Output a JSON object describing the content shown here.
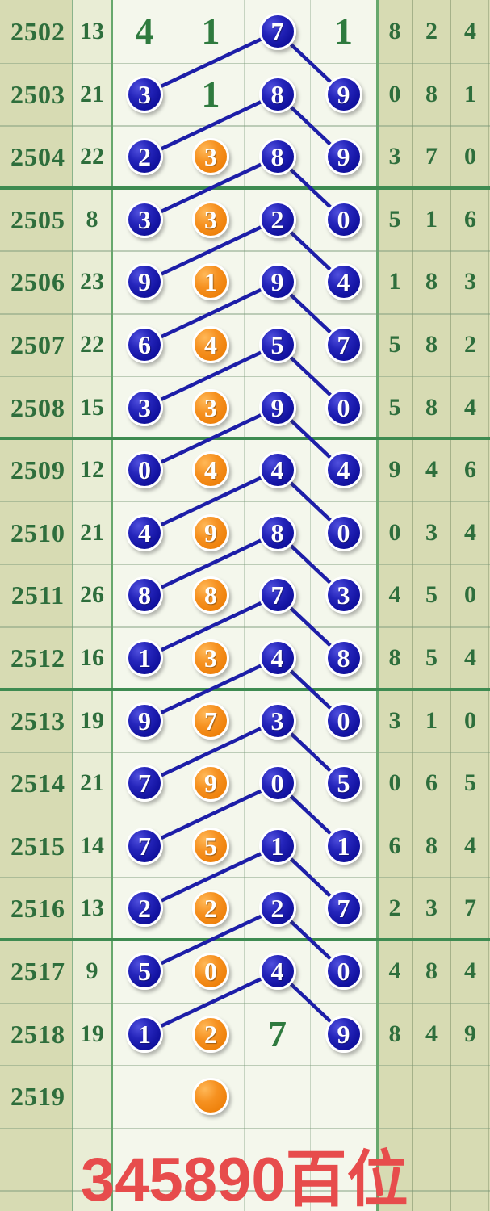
{
  "palette": {
    "page_bg": "#d7dbb3",
    "sum_col_bg": "#e9edd5",
    "chart_bg": "#f4f7ec",
    "green_text": "#2e6e3c",
    "chart_green_text": "#2e7a3e",
    "blue_ball": "#1c1cae",
    "orange_ball": "#f08a12",
    "connector_line": "#1d1ea8",
    "group_separator": "#3e8b51",
    "stamp_red": "#e74c4c"
  },
  "footer": {
    "label": "345890百位"
  },
  "chart_data": {
    "type": "table",
    "title": "345890百位",
    "columns": [
      "period",
      "sum",
      "pos1",
      "pos2",
      "pos3",
      "pos4",
      "stat1",
      "stat2",
      "stat3"
    ],
    "cell_styles": {
      "t": "green-text",
      "b": "blue-ball",
      "o": "orange-ball",
      "": "empty"
    },
    "line_rule": "blue ball in pos3 of each row connects to blue balls in pos1 and pos4 of the next row",
    "rows": [
      {
        "period": "2502",
        "sum": "13",
        "cells": [
          {
            "v": "4",
            "s": "t"
          },
          {
            "v": "1",
            "s": "t"
          },
          {
            "v": "7",
            "s": "b"
          },
          {
            "v": "1",
            "s": "t"
          }
        ],
        "right": [
          "8",
          "2",
          "4"
        ]
      },
      {
        "period": "2503",
        "sum": "21",
        "cells": [
          {
            "v": "3",
            "s": "b"
          },
          {
            "v": "1",
            "s": "t"
          },
          {
            "v": "8",
            "s": "b"
          },
          {
            "v": "9",
            "s": "b"
          }
        ],
        "right": [
          "0",
          "8",
          "1"
        ]
      },
      {
        "period": "2504",
        "sum": "22",
        "cells": [
          {
            "v": "2",
            "s": "b"
          },
          {
            "v": "3",
            "s": "o"
          },
          {
            "v": "8",
            "s": "b"
          },
          {
            "v": "9",
            "s": "b"
          }
        ],
        "right": [
          "3",
          "7",
          "0"
        ]
      },
      {
        "period": "2505",
        "sum": "8",
        "cells": [
          {
            "v": "3",
            "s": "b"
          },
          {
            "v": "3",
            "s": "o"
          },
          {
            "v": "2",
            "s": "b"
          },
          {
            "v": "0",
            "s": "b"
          }
        ],
        "right": [
          "5",
          "1",
          "6"
        ]
      },
      {
        "period": "2506",
        "sum": "23",
        "cells": [
          {
            "v": "9",
            "s": "b"
          },
          {
            "v": "1",
            "s": "o"
          },
          {
            "v": "9",
            "s": "b"
          },
          {
            "v": "4",
            "s": "b"
          }
        ],
        "right": [
          "1",
          "8",
          "3"
        ]
      },
      {
        "period": "2507",
        "sum": "22",
        "cells": [
          {
            "v": "6",
            "s": "b"
          },
          {
            "v": "4",
            "s": "o"
          },
          {
            "v": "5",
            "s": "b"
          },
          {
            "v": "7",
            "s": "b"
          }
        ],
        "right": [
          "5",
          "8",
          "2"
        ]
      },
      {
        "period": "2508",
        "sum": "15",
        "cells": [
          {
            "v": "3",
            "s": "b"
          },
          {
            "v": "3",
            "s": "o"
          },
          {
            "v": "9",
            "s": "b"
          },
          {
            "v": "0",
            "s": "b"
          }
        ],
        "right": [
          "5",
          "8",
          "4"
        ]
      },
      {
        "period": "2509",
        "sum": "12",
        "cells": [
          {
            "v": "0",
            "s": "b"
          },
          {
            "v": "4",
            "s": "o"
          },
          {
            "v": "4",
            "s": "b"
          },
          {
            "v": "4",
            "s": "b"
          }
        ],
        "right": [
          "9",
          "4",
          "6"
        ]
      },
      {
        "period": "2510",
        "sum": "21",
        "cells": [
          {
            "v": "4",
            "s": "b"
          },
          {
            "v": "9",
            "s": "o"
          },
          {
            "v": "8",
            "s": "b"
          },
          {
            "v": "0",
            "s": "b"
          }
        ],
        "right": [
          "0",
          "3",
          "4"
        ]
      },
      {
        "period": "2511",
        "sum": "26",
        "cells": [
          {
            "v": "8",
            "s": "b"
          },
          {
            "v": "8",
            "s": "o"
          },
          {
            "v": "7",
            "s": "b"
          },
          {
            "v": "3",
            "s": "b"
          }
        ],
        "right": [
          "4",
          "5",
          "0"
        ]
      },
      {
        "period": "2512",
        "sum": "16",
        "cells": [
          {
            "v": "1",
            "s": "b"
          },
          {
            "v": "3",
            "s": "o"
          },
          {
            "v": "4",
            "s": "b"
          },
          {
            "v": "8",
            "s": "b"
          }
        ],
        "right": [
          "8",
          "5",
          "4"
        ]
      },
      {
        "period": "2513",
        "sum": "19",
        "cells": [
          {
            "v": "9",
            "s": "b"
          },
          {
            "v": "7",
            "s": "o"
          },
          {
            "v": "3",
            "s": "b"
          },
          {
            "v": "0",
            "s": "b"
          }
        ],
        "right": [
          "3",
          "1",
          "0"
        ]
      },
      {
        "period": "2514",
        "sum": "21",
        "cells": [
          {
            "v": "7",
            "s": "b"
          },
          {
            "v": "9",
            "s": "o"
          },
          {
            "v": "0",
            "s": "b"
          },
          {
            "v": "5",
            "s": "b"
          }
        ],
        "right": [
          "0",
          "6",
          "5"
        ]
      },
      {
        "period": "2515",
        "sum": "14",
        "cells": [
          {
            "v": "7",
            "s": "b"
          },
          {
            "v": "5",
            "s": "o"
          },
          {
            "v": "1",
            "s": "b"
          },
          {
            "v": "1",
            "s": "b"
          }
        ],
        "right": [
          "6",
          "8",
          "4"
        ]
      },
      {
        "period": "2516",
        "sum": "13",
        "cells": [
          {
            "v": "2",
            "s": "b"
          },
          {
            "v": "2",
            "s": "o"
          },
          {
            "v": "2",
            "s": "b"
          },
          {
            "v": "7",
            "s": "b"
          }
        ],
        "right": [
          "2",
          "3",
          "7"
        ]
      },
      {
        "period": "2517",
        "sum": "9",
        "cells": [
          {
            "v": "5",
            "s": "b"
          },
          {
            "v": "0",
            "s": "o"
          },
          {
            "v": "4",
            "s": "b"
          },
          {
            "v": "0",
            "s": "b"
          }
        ],
        "right": [
          "4",
          "8",
          "4"
        ]
      },
      {
        "period": "2518",
        "sum": "19",
        "cells": [
          {
            "v": "1",
            "s": "b"
          },
          {
            "v": "2",
            "s": "o"
          },
          {
            "v": "7",
            "s": "t"
          },
          {
            "v": "9",
            "s": "b"
          }
        ],
        "right": [
          "8",
          "4",
          "9"
        ]
      },
      {
        "period": "2519",
        "sum": "",
        "cells": [
          {
            "v": "",
            "s": ""
          },
          {
            "v": "",
            "s": "o"
          },
          {
            "v": "",
            "s": ""
          },
          {
            "v": "",
            "s": ""
          }
        ],
        "right": [
          "",
          "",
          ""
        ]
      },
      {
        "period": "",
        "sum": "",
        "cells": [
          {
            "v": "",
            "s": ""
          },
          {
            "v": "",
            "s": ""
          },
          {
            "v": "",
            "s": ""
          },
          {
            "v": "",
            "s": ""
          }
        ],
        "right": [
          "",
          "",
          ""
        ]
      }
    ]
  }
}
